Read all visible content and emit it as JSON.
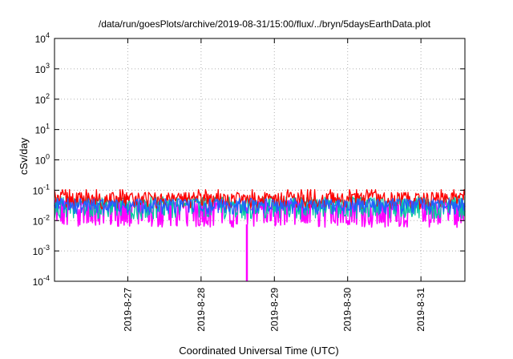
{
  "chart_data": {
    "type": "line",
    "title": "/data/run/goesPlots/archive/2019-08-31/15:00/flux/../bryn/5daysEarthData.plot",
    "xlabel": "Coordinated Universal Time (UTC)",
    "ylabel": "cSv/day",
    "yscale": "log",
    "ylim": [
      0.0001,
      10000
    ],
    "xlim": [
      0,
      5.6
    ],
    "x_unit_note_hidden": true,
    "yticks": [
      {
        "base": "10",
        "exp": "-4"
      },
      {
        "base": "10",
        "exp": "-3"
      },
      {
        "base": "10",
        "exp": "-2"
      },
      {
        "base": "10",
        "exp": "-1"
      },
      {
        "base": "10",
        "exp": "0"
      },
      {
        "base": "10",
        "exp": "1"
      },
      {
        "base": "10",
        "exp": "2"
      },
      {
        "base": "10",
        "exp": "3"
      },
      {
        "base": "10",
        "exp": "4"
      }
    ],
    "xticks": [
      "2019-8-27",
      "2019-8-28",
      "2019-8-29",
      "2019-8-30",
      "2019-8-31"
    ],
    "grid": true,
    "legend": "none",
    "series": [
      {
        "color": "#ff0000",
        "level": 0.055,
        "low": 0.03
      },
      {
        "color": "#00c8a0",
        "level": 0.04,
        "low": 0.014
      },
      {
        "color": "#2060ff",
        "level": 0.035,
        "low": 0.02
      },
      {
        "color": "#ff00ff",
        "level": 0.03,
        "low": 0.0075,
        "spike_to": 0.0001,
        "spike_x": "2019-8-28 15:00"
      }
    ]
  }
}
